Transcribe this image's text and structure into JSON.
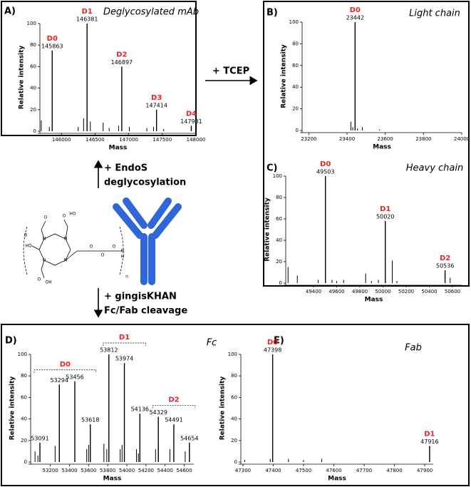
{
  "chart_data": [
    {
      "type": "stick",
      "panel": "A)",
      "title": "Deglycosylated mAb",
      "xlabel": "Mass",
      "ylabel": "Relative intensity",
      "xlim": [
        145680,
        148000
      ],
      "ylim": [
        0,
        100
      ],
      "xticks": [
        146000,
        146500,
        147000,
        147500,
        148000
      ],
      "yticks": [
        0,
        20,
        40,
        60,
        80,
        100
      ],
      "color": "#000000",
      "label_color": "#e8242a",
      "peaks": {
        "x": [
          145863,
          146381,
          146897,
          147414,
          147931
        ],
        "values": [
          75,
          100,
          60,
          20,
          5
        ],
        "names": [
          "D0",
          "D1",
          "D2",
          "D3",
          "D4"
        ]
      },
      "minor_peaks": {
        "x": [
          145700,
          145820,
          146250,
          146330,
          146430,
          146620,
          146710,
          146850,
          147010,
          147270,
          147370,
          147520
        ],
        "values": [
          10,
          4,
          4,
          12,
          9,
          8,
          3,
          5,
          4,
          3,
          4,
          2
        ]
      }
    },
    {
      "type": "stick",
      "panel": "B)",
      "title": "Light chain",
      "xlabel": "Mass",
      "ylabel": "Relative intensity",
      "xlim": [
        23165,
        24000
      ],
      "ylim": [
        0,
        100
      ],
      "xticks": [
        23200,
        23400,
        23600,
        23800,
        24000
      ],
      "yticks": [
        0,
        20,
        40,
        60,
        80,
        100
      ],
      "color": "#000000",
      "label_color": "#e8242a",
      "peaks": {
        "x": [
          23442
        ],
        "values": [
          100
        ],
        "names": [
          "D0"
        ]
      },
      "minor_peaks": {
        "x": [
          23420,
          23430,
          23455,
          23480,
          23570
        ],
        "values": [
          8,
          3,
          2,
          3,
          1
        ]
      }
    },
    {
      "type": "stick",
      "panel": "C)",
      "title": "Heavy chain",
      "xlabel": "Mass",
      "ylabel": "Relative intensity",
      "xlim": [
        49160,
        50680
      ],
      "ylim": [
        0,
        100
      ],
      "xticks": [
        49400,
        49600,
        49800,
        50000,
        50200,
        50400,
        50600
      ],
      "yticks": [
        0,
        20,
        40,
        60,
        80,
        100
      ],
      "color": "#000000",
      "label_color": "#e8242a",
      "peaks": {
        "x": [
          49503,
          50020,
          50536
        ],
        "values": [
          100,
          58,
          12
        ],
        "names": [
          "D0",
          "D1",
          "D2"
        ]
      },
      "minor_peaks": {
        "x": [
          49180,
          49260,
          49440,
          49560,
          49600,
          49660,
          49850,
          49900,
          49960,
          50080,
          50120,
          50580
        ],
        "values": [
          15,
          7,
          3,
          3,
          2,
          3,
          9,
          2,
          3,
          21,
          2,
          5
        ]
      }
    },
    {
      "type": "stick",
      "panel": "D)",
      "title": "Fc",
      "xlabel": "Mass",
      "ylabel": "Relative intensity",
      "xlim": [
        52994,
        54700
      ],
      "ylim": [
        0,
        100
      ],
      "xticks": [
        53200,
        53400,
        53600,
        53800,
        54000,
        54200,
        54400,
        54600
      ],
      "yticks": [
        0,
        20,
        40,
        60,
        80,
        100
      ],
      "color": "#000000",
      "label_color": "#e8242a",
      "peaks": {
        "x": [
          53091,
          53294,
          53456,
          53618,
          53812,
          53974,
          54136,
          54329,
          54491,
          54654
        ],
        "values": [
          18,
          72,
          75,
          35,
          100,
          92,
          45,
          42,
          35,
          18
        ],
        "groups": [
          "D0",
          "D0",
          "D0",
          "D0",
          "D1",
          "D1",
          "D1",
          "D2",
          "D2",
          "D2"
        ]
      },
      "minor_peaks": {
        "x": [
          53040,
          53070,
          53250,
          53580,
          53600,
          53760,
          53790,
          53930,
          53950,
          54100,
          54120,
          54300,
          54450,
          54610
        ],
        "values": [
          10,
          6,
          15,
          12,
          16,
          17,
          12,
          12,
          16,
          12,
          8,
          12,
          12,
          10
        ]
      }
    },
    {
      "type": "stick",
      "panel": "E)",
      "title": "Fab",
      "xlabel": "Mass",
      "ylabel": "Relative intensity",
      "xlim": [
        47293,
        47928
      ],
      "ylim": [
        0,
        100
      ],
      "xticks": [
        47300,
        47400,
        47500,
        47600,
        47700,
        47800,
        47900
      ],
      "yticks": [
        0,
        20,
        40,
        60,
        80,
        100
      ],
      "color": "#000000",
      "label_color": "#e8242a",
      "peaks": {
        "x": [
          47398,
          47916
        ],
        "values": [
          100,
          15
        ],
        "names": [
          "D0",
          "D1"
        ]
      },
      "minor_peaks": {
        "x": [
          47306,
          47390,
          47450,
          47500,
          47560
        ],
        "values": [
          2,
          3,
          3,
          2,
          3
        ]
      }
    }
  ],
  "diagram": {
    "tcep": "+ TCEP",
    "endos": [
      "+ EndoS",
      "deglycosylation"
    ],
    "gingis": [
      "+ gingisKHAN",
      "Fc/Fab cleavage"
    ],
    "structure_labels": [
      "HO",
      "O",
      "N",
      "N",
      "N",
      "N",
      "O",
      "HO",
      "O",
      "OH",
      "O",
      "O",
      "O",
      "O",
      "N",
      "H",
      "n"
    ]
  }
}
